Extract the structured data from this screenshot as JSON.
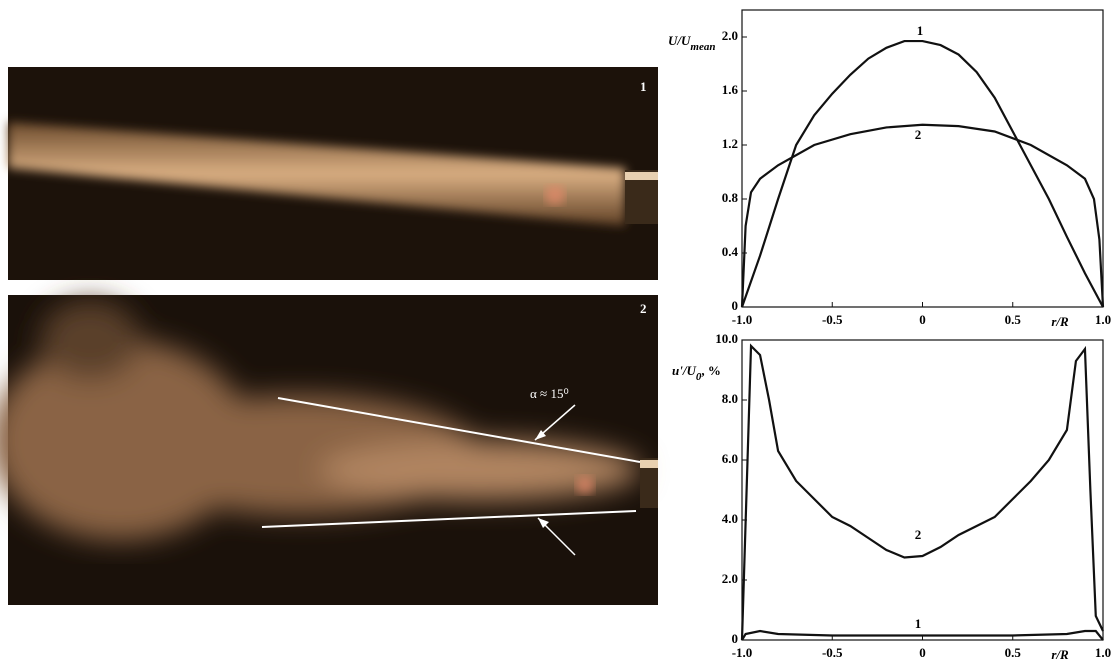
{
  "photos": [
    {
      "label": "1"
    },
    {
      "label": "2",
      "annotation": "α ≈ 15⁰"
    }
  ],
  "chart_data": [
    {
      "type": "line",
      "ylabel": [
        "U/U",
        "mean"
      ],
      "xlabel": "r/R",
      "xlim": [
        -1,
        1
      ],
      "ylim": [
        0,
        2.2
      ],
      "xticks": [
        {
          "value": -1,
          "label": "-1.0"
        },
        -0.5,
        0,
        0.5,
        {
          "value": 1,
          "label": "1.0"
        }
      ],
      "yticks": [
        0,
        0.4,
        0.8,
        1.2,
        1.6,
        {
          "value": 2,
          "label": "2.0"
        }
      ],
      "series": [
        {
          "name": "1",
          "color": "#111111",
          "x": [
            -1,
            -0.9,
            -0.8,
            -0.7,
            -0.6,
            -0.5,
            -0.4,
            -0.3,
            -0.2,
            -0.1,
            0,
            0.1,
            0.2,
            0.3,
            0.4,
            0.5,
            0.6,
            0.7,
            0.8,
            0.9,
            1
          ],
          "values": [
            0,
            0.38,
            0.8,
            1.2,
            1.42,
            1.58,
            1.72,
            1.84,
            1.92,
            1.97,
            1.97,
            1.94,
            1.87,
            1.74,
            1.55,
            1.3,
            1.05,
            0.8,
            0.52,
            0.25,
            0
          ]
        },
        {
          "name": "2",
          "color": "#111111",
          "x": [
            -1,
            -0.98,
            -0.95,
            -0.9,
            -0.8,
            -0.6,
            -0.4,
            -0.2,
            0,
            0.2,
            0.4,
            0.6,
            0.8,
            0.9,
            0.95,
            0.98,
            1
          ],
          "values": [
            0,
            0.6,
            0.85,
            0.95,
            1.05,
            1.2,
            1.28,
            1.33,
            1.35,
            1.34,
            1.3,
            1.2,
            1.05,
            0.95,
            0.8,
            0.5,
            0
          ]
        }
      ]
    },
    {
      "type": "line",
      "ylabel": [
        "u'/U",
        "0",
        ", %"
      ],
      "xlabel": "r/R",
      "xlim": [
        -1,
        1
      ],
      "ylim": [
        0,
        10
      ],
      "xticks": [
        {
          "value": -1,
          "label": "-1.0"
        },
        -0.5,
        0,
        0.5,
        {
          "value": 1,
          "label": "1.0"
        }
      ],
      "yticks": [
        0,
        {
          "value": 2,
          "label": "2.0"
        },
        {
          "value": 4,
          "label": "4.0"
        },
        {
          "value": 6,
          "label": "6.0"
        },
        {
          "value": 8,
          "label": "8.0"
        },
        {
          "value": 10,
          "label": "10.0"
        }
      ],
      "series": [
        {
          "name": "2",
          "color": "#111111",
          "x": [
            -1,
            -0.95,
            -0.9,
            -0.85,
            -0.8,
            -0.7,
            -0.6,
            -0.5,
            -0.4,
            -0.3,
            -0.2,
            -0.1,
            0,
            0.1,
            0.2,
            0.3,
            0.4,
            0.5,
            0.6,
            0.7,
            0.8,
            0.85,
            0.9,
            0.93,
            0.96,
            1
          ],
          "values": [
            0,
            9.8,
            9.5,
            8,
            6.3,
            5.3,
            4.7,
            4.1,
            3.8,
            3.4,
            3.0,
            2.75,
            2.8,
            3.1,
            3.5,
            3.8,
            4.1,
            4.7,
            5.3,
            6.0,
            7.0,
            9.3,
            9.7,
            5,
            0.8,
            0.3
          ]
        },
        {
          "name": "1",
          "color": "#111111",
          "x": [
            -1,
            -0.98,
            -0.9,
            -0.8,
            -0.5,
            0,
            0.5,
            0.8,
            0.9,
            0.96,
            1
          ],
          "values": [
            0,
            0.2,
            0.3,
            0.2,
            0.15,
            0.15,
            0.15,
            0.2,
            0.3,
            0.3,
            0
          ]
        }
      ]
    }
  ]
}
